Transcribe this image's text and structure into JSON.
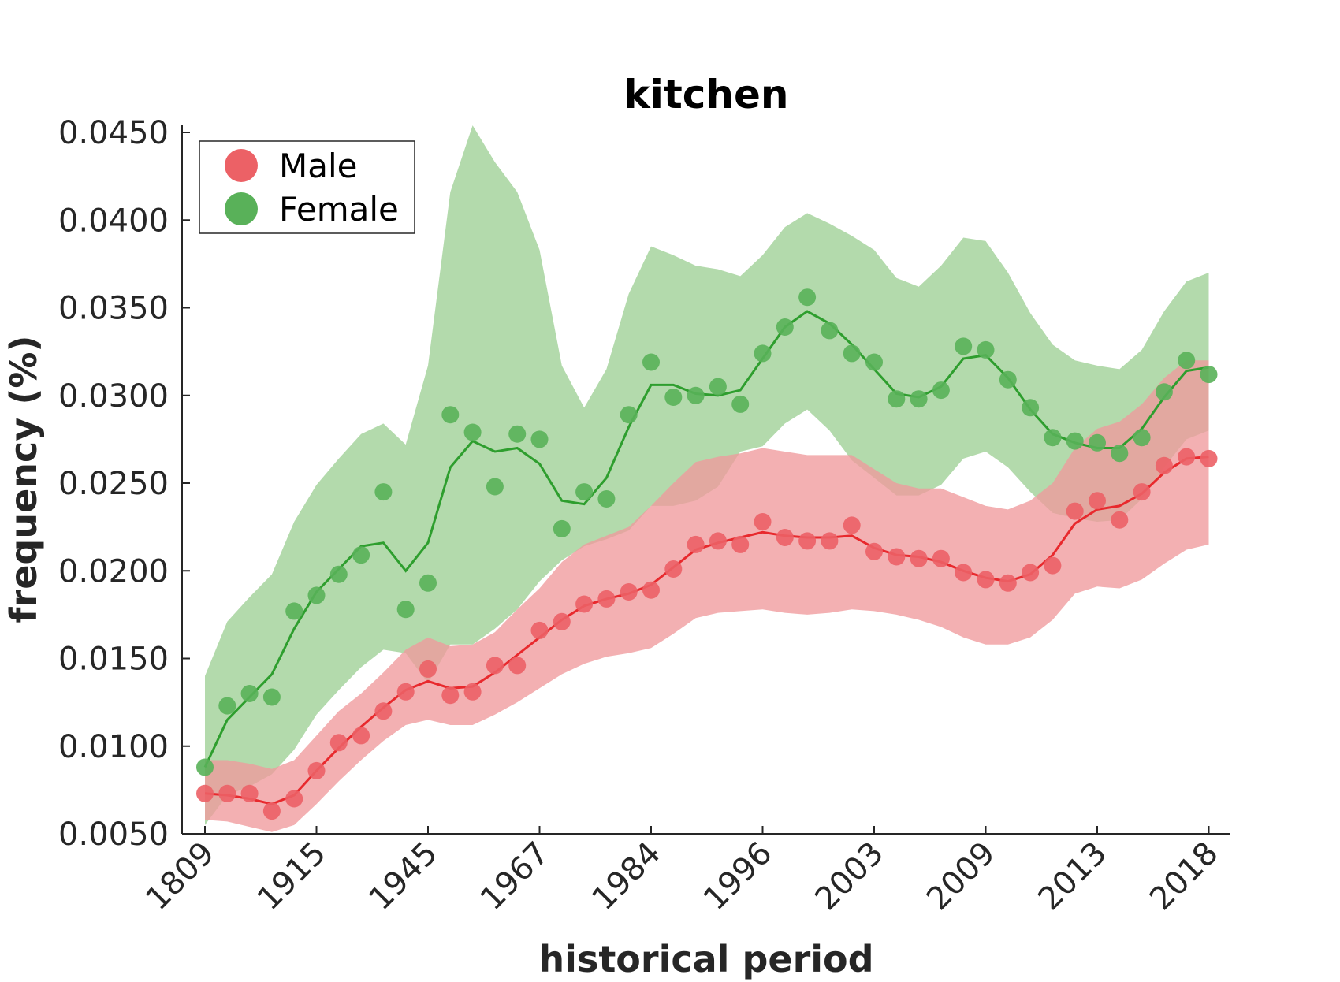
{
  "chart_data": {
    "type": "line",
    "title": "kitchen",
    "xlabel": "historical period",
    "ylabel": "frequency (%)",
    "ylim": [
      0.005,
      0.045
    ],
    "yticks": [
      "0.0050",
      "0.0100",
      "0.0150",
      "0.0200",
      "0.0250",
      "0.0300",
      "0.0350",
      "0.0400",
      "0.0450"
    ],
    "ytick_values": [
      0.005,
      0.01,
      0.015,
      0.02,
      0.025,
      0.03,
      0.035,
      0.04,
      0.045
    ],
    "xticks": [
      "1809",
      "1915",
      "1945",
      "1967",
      "1984",
      "1996",
      "2003",
      "2009",
      "2013",
      "2018"
    ],
    "xtick_positions": [
      0,
      5,
      10,
      15,
      20,
      25,
      30,
      35,
      40,
      45
    ],
    "n_points": 46,
    "legend_position": "top-left",
    "series": [
      {
        "name": "Male",
        "color": "#e8292d",
        "marker_color": "#ec6166",
        "band_color": "#f09a9c",
        "points": [
          0.0073,
          0.0073,
          0.0073,
          0.0063,
          0.007,
          0.0086,
          0.0102,
          0.0106,
          0.012,
          0.0131,
          0.0144,
          0.0129,
          0.0131,
          0.0146,
          0.0146,
          0.0166,
          0.0171,
          0.0181,
          0.0184,
          0.0188,
          0.0189,
          0.0201,
          0.0215,
          0.0217,
          0.0215,
          0.0228,
          0.0219,
          0.0217,
          0.0217,
          0.0226,
          0.0211,
          0.0208,
          0.0207,
          0.0207,
          0.0199,
          0.0195,
          0.0193,
          0.0199,
          0.0203,
          0.0234,
          0.024,
          0.0229,
          0.0245,
          0.026,
          0.0265,
          0.0264
        ],
        "smooth": [
          0.0073,
          0.0072,
          0.007,
          0.0067,
          0.0072,
          0.0086,
          0.0099,
          0.0111,
          0.0122,
          0.0132,
          0.0137,
          0.0133,
          0.0134,
          0.0142,
          0.0152,
          0.0162,
          0.0172,
          0.018,
          0.0184,
          0.0187,
          0.0192,
          0.0202,
          0.0212,
          0.0216,
          0.0219,
          0.0222,
          0.022,
          0.0219,
          0.0219,
          0.022,
          0.0213,
          0.0209,
          0.0208,
          0.0205,
          0.02,
          0.0196,
          0.0194,
          0.0198,
          0.0209,
          0.0227,
          0.0235,
          0.0237,
          0.0244,
          0.0256,
          0.0264,
          0.0265
        ],
        "upper": [
          0.0092,
          0.0092,
          0.009,
          0.0087,
          0.0092,
          0.0106,
          0.012,
          0.013,
          0.0142,
          0.0155,
          0.0162,
          0.0157,
          0.0158,
          0.0165,
          0.0178,
          0.019,
          0.0205,
          0.0215,
          0.022,
          0.0225,
          0.0237,
          0.025,
          0.0262,
          0.0265,
          0.0267,
          0.027,
          0.0268,
          0.0266,
          0.0266,
          0.0266,
          0.0258,
          0.025,
          0.0247,
          0.0247,
          0.0242,
          0.0237,
          0.0235,
          0.024,
          0.025,
          0.027,
          0.0281,
          0.0285,
          0.0295,
          0.031,
          0.032,
          0.032
        ],
        "lower": [
          0.0058,
          0.0057,
          0.0054,
          0.0051,
          0.0055,
          0.0067,
          0.008,
          0.0092,
          0.0103,
          0.0112,
          0.0115,
          0.0112,
          0.0112,
          0.0118,
          0.0125,
          0.0133,
          0.0141,
          0.0147,
          0.0151,
          0.0153,
          0.0156,
          0.0164,
          0.0173,
          0.0176,
          0.0177,
          0.0178,
          0.0176,
          0.0175,
          0.0176,
          0.0178,
          0.0177,
          0.0175,
          0.0172,
          0.0168,
          0.0162,
          0.0158,
          0.0158,
          0.0162,
          0.0172,
          0.0187,
          0.0191,
          0.019,
          0.0195,
          0.0204,
          0.0212,
          0.0215
        ]
      },
      {
        "name": "Female",
        "color": "#2e9e2e",
        "marker_color": "#59b159",
        "band_color": "#afd8a8",
        "points": [
          0.0088,
          0.0123,
          0.013,
          0.0128,
          0.0177,
          0.0186,
          0.0198,
          0.0209,
          0.0245,
          0.0178,
          0.0193,
          0.0289,
          0.0279,
          0.0248,
          0.0278,
          0.0275,
          0.0224,
          0.0245,
          0.0241,
          0.0289,
          0.0319,
          0.0299,
          0.03,
          0.0305,
          0.0295,
          0.0324,
          0.0339,
          0.0356,
          0.0337,
          0.0324,
          0.0319,
          0.0298,
          0.0298,
          0.0303,
          0.0328,
          0.0326,
          0.0309,
          0.0293,
          0.0276,
          0.0274,
          0.0273,
          0.0267,
          0.0276,
          0.0302,
          0.032,
          0.0312
        ],
        "smooth": [
          0.0088,
          0.0115,
          0.0128,
          0.0141,
          0.0167,
          0.0188,
          0.0201,
          0.0214,
          0.0216,
          0.02,
          0.0216,
          0.0259,
          0.0274,
          0.0268,
          0.027,
          0.0261,
          0.024,
          0.0238,
          0.0253,
          0.0282,
          0.0306,
          0.0306,
          0.0301,
          0.03,
          0.0303,
          0.0321,
          0.0339,
          0.0348,
          0.0341,
          0.0329,
          0.0315,
          0.0301,
          0.0299,
          0.0305,
          0.0321,
          0.0323,
          0.031,
          0.0292,
          0.0278,
          0.0273,
          0.027,
          0.027,
          0.0281,
          0.0299,
          0.0314,
          0.0316
        ],
        "upper": [
          0.014,
          0.0171,
          0.0185,
          0.0198,
          0.0228,
          0.0249,
          0.0264,
          0.0278,
          0.0284,
          0.0272,
          0.0317,
          0.0416,
          0.0454,
          0.0433,
          0.0416,
          0.0383,
          0.0317,
          0.0293,
          0.0315,
          0.0358,
          0.0385,
          0.038,
          0.0374,
          0.0372,
          0.0368,
          0.038,
          0.0396,
          0.0404,
          0.0398,
          0.0391,
          0.0383,
          0.0367,
          0.0362,
          0.0374,
          0.039,
          0.0388,
          0.037,
          0.0347,
          0.0329,
          0.032,
          0.0317,
          0.0315,
          0.0326,
          0.0348,
          0.0365,
          0.037
        ],
        "lower": [
          0.0055,
          0.0072,
          0.0077,
          0.0084,
          0.0098,
          0.0118,
          0.0132,
          0.0145,
          0.0155,
          0.0153,
          0.0136,
          0.0158,
          0.0158,
          0.0167,
          0.0178,
          0.0194,
          0.0206,
          0.0214,
          0.0218,
          0.0223,
          0.0237,
          0.0237,
          0.024,
          0.0248,
          0.0268,
          0.0271,
          0.0284,
          0.0292,
          0.028,
          0.0263,
          0.0253,
          0.0243,
          0.0243,
          0.0249,
          0.0264,
          0.0268,
          0.0259,
          0.0245,
          0.0233,
          0.023,
          0.0228,
          0.0229,
          0.0241,
          0.0259,
          0.0275,
          0.028
        ]
      }
    ]
  }
}
